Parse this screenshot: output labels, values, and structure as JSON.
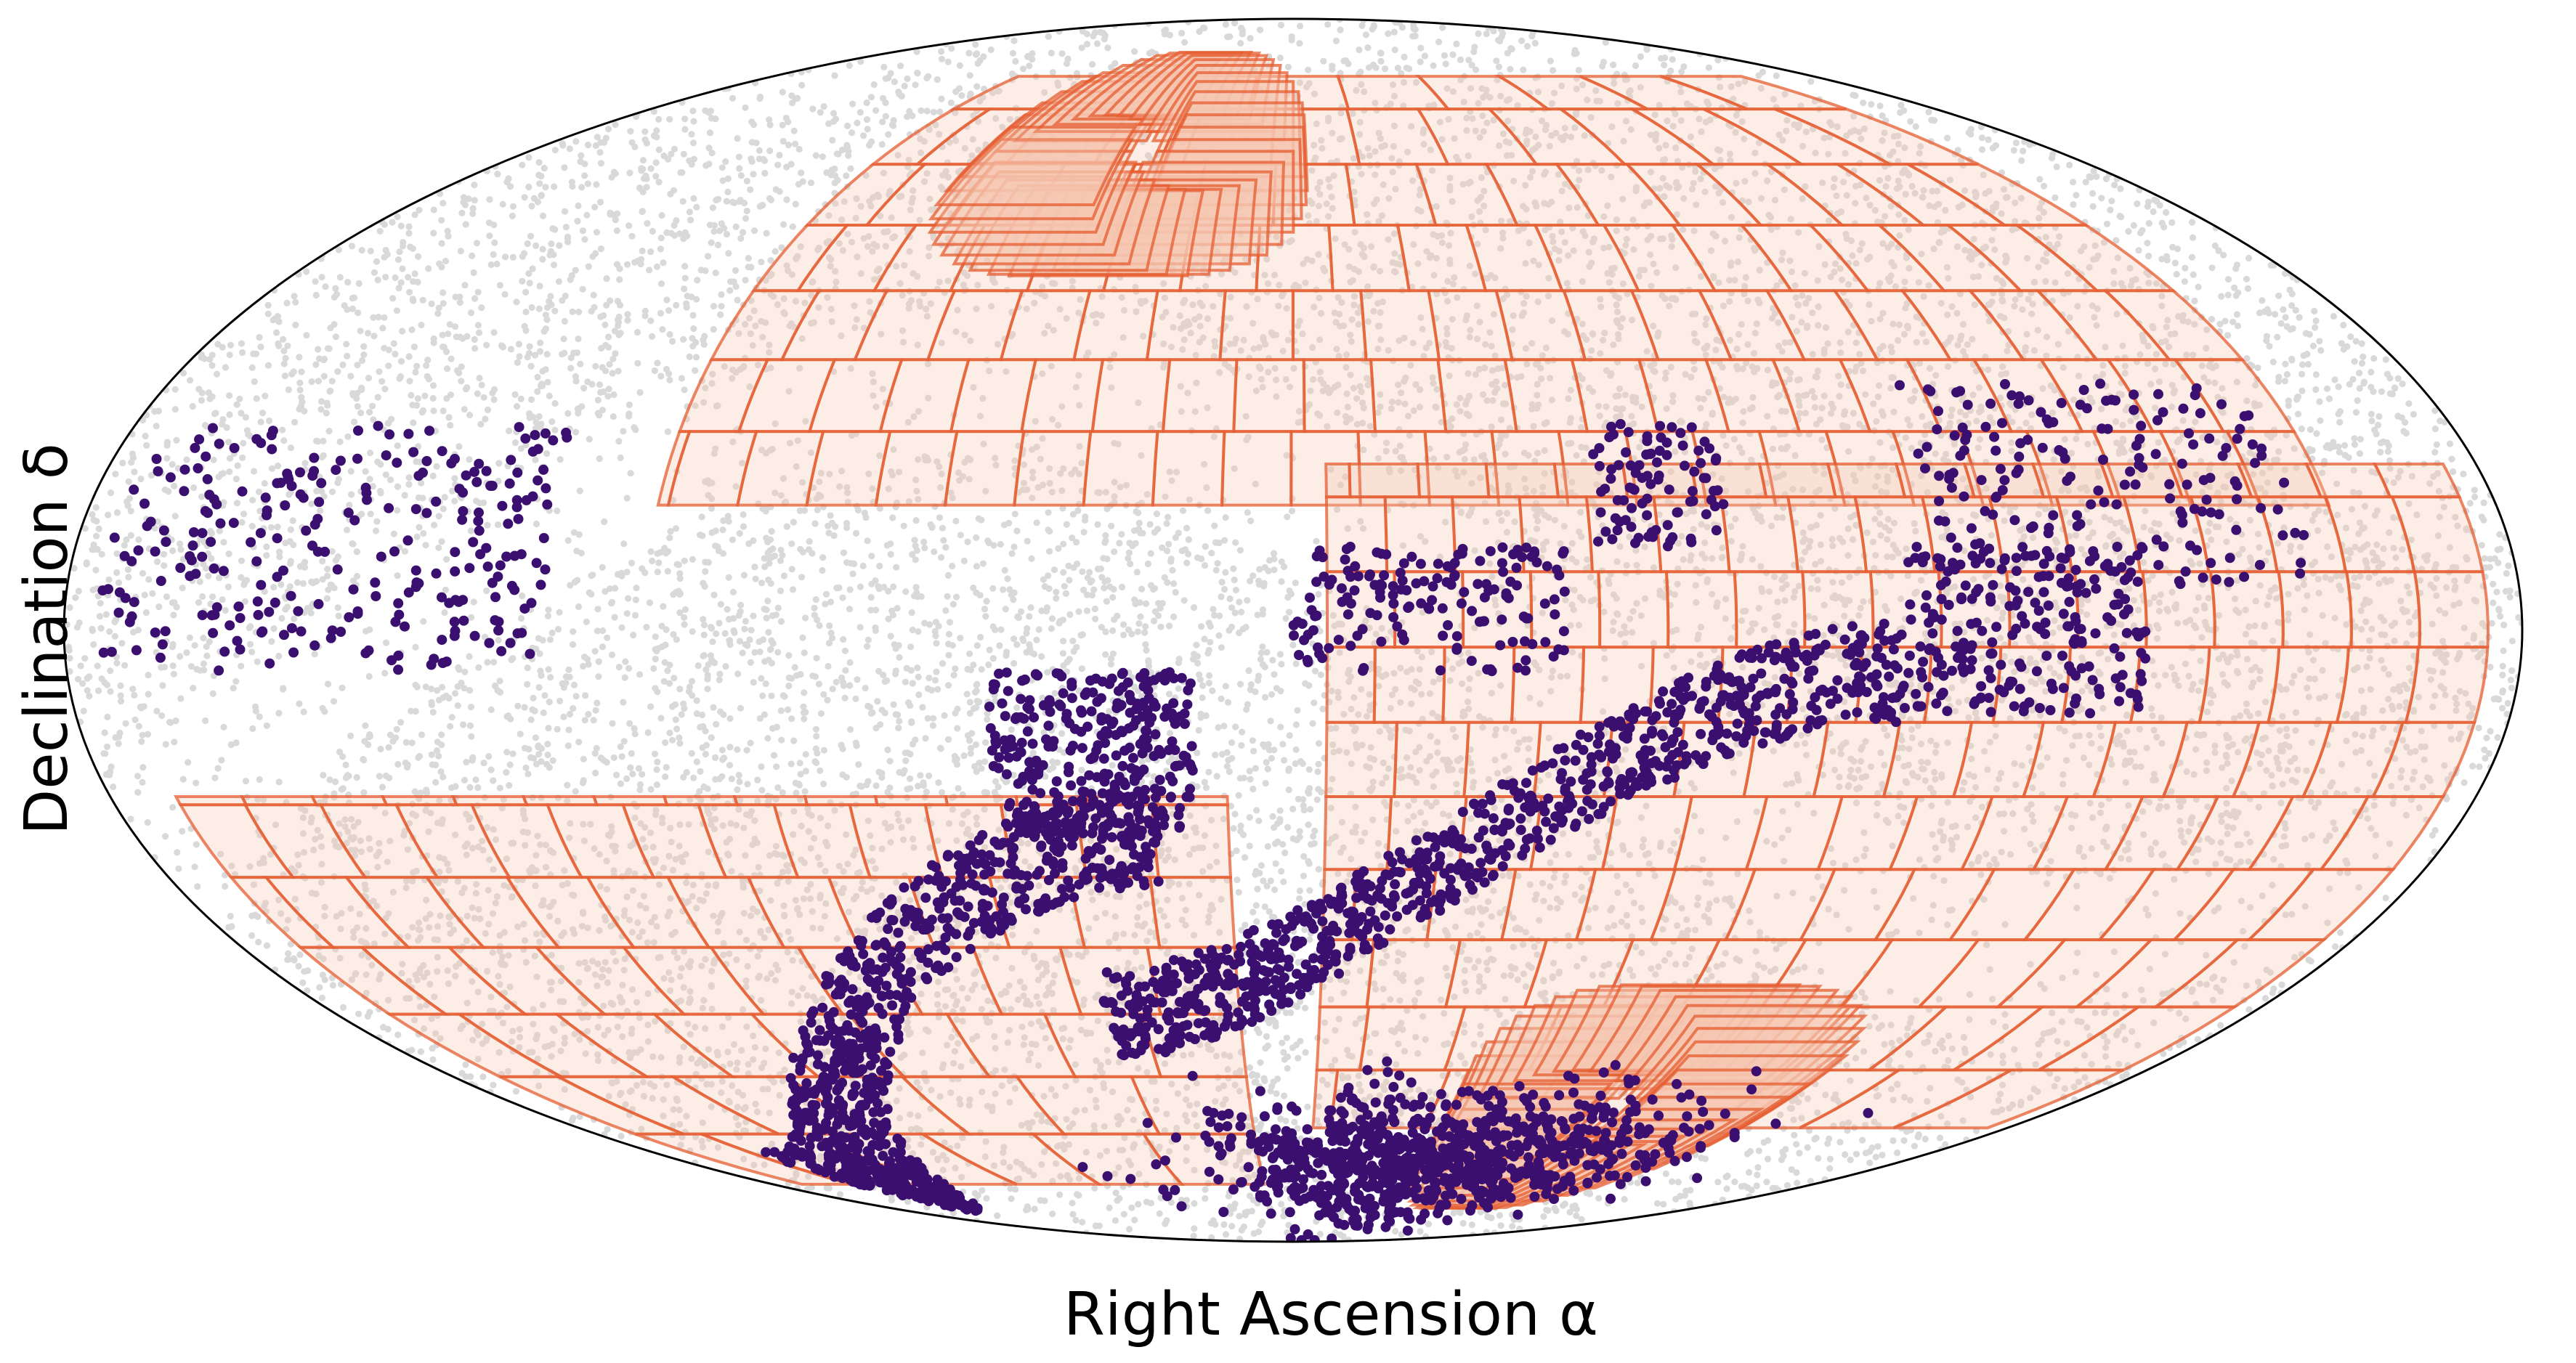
{
  "chart_data": {
    "type": "scatter",
    "projection": "mollweide",
    "title": "",
    "xlabel": "Right Ascension α",
    "ylabel": "Declination δ",
    "grid": false,
    "legend": "none",
    "xlim": [
      -180,
      180
    ],
    "ylim": [
      -90,
      90
    ],
    "series": [
      {
        "kind": "background-points",
        "color": "#d9d9d9",
        "count": 14000,
        "note_distribution": "uniform over the sky, sparser along a band crossing the middle"
      },
      {
        "kind": "survey-footprints",
        "color": "#e55c30",
        "fill": "#f6c7b0",
        "regions": [
          {
            "ra": [
              -155,
              95
            ],
            "dec": [
              15,
              75
            ],
            "pole_dec": 62,
            "pole_ra": 35
          },
          {
            "ra": [
              -175,
              -5
            ],
            "dec": [
              -65,
              20
            ],
            "pole_dec": -62,
            "pole_ra": -75
          },
          {
            "ra": [
              10,
              170
            ],
            "dec": [
              -75,
              -20
            ]
          }
        ]
      },
      {
        "kind": "tracer-points",
        "color": "#3b0f6f",
        "groups": [
          {
            "ra": [
              -150,
              -95
            ],
            "dec": [
              5,
              30
            ],
            "n": 180
          },
          {
            "ra": [
              -65,
              -45
            ],
            "dec": [
              10,
              25
            ],
            "n": 90
          },
          {
            "ra": [
              -125,
              -90
            ],
            "dec": [
              -10,
              10
            ],
            "n": 220
          },
          {
            "ra": [
              -90,
              35
            ],
            "dec": [
              -48,
              -5
            ],
            "n": 900,
            "shape": "arc"
          },
          {
            "ra": [
              -40,
              0
            ],
            "dec": [
              -5,
              10
            ],
            "n": 160
          },
          {
            "ra": [
              15,
              45
            ],
            "dec": [
              -25,
              -5
            ],
            "n": 330
          },
          {
            "ra": [
              -120,
              40
            ],
            "dec": [
              -85,
              -55
            ],
            "n": 900,
            "shape": "cluster"
          },
          {
            "ra": [
              20,
              150
            ],
            "dec": [
              -75,
              -25
            ],
            "n": 900,
            "shape": "arc"
          },
          {
            "ra": [
              110,
              175
            ],
            "dec": [
              -5,
              25
            ],
            "n": 260
          }
        ]
      }
    ]
  }
}
